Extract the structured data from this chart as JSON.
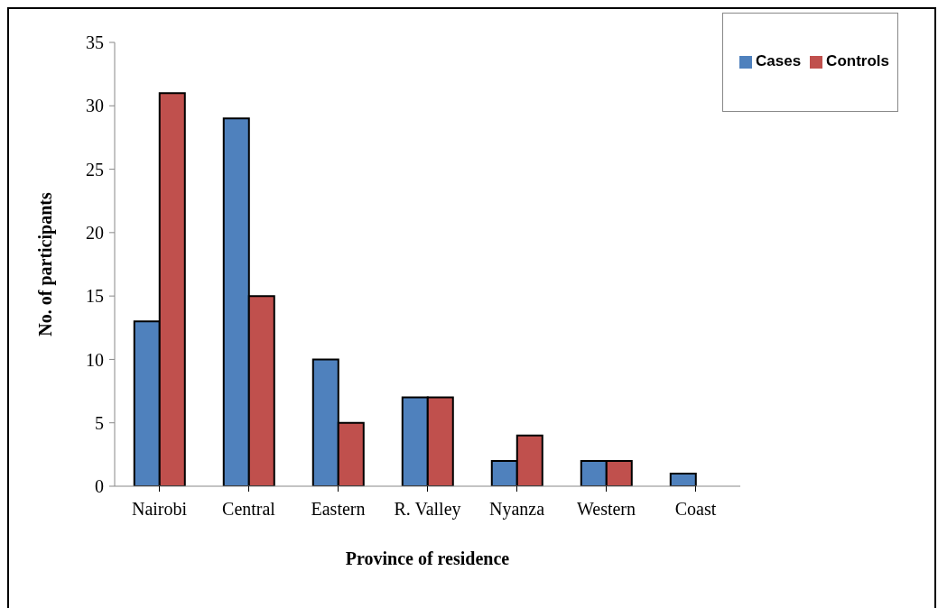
{
  "chart_data": {
    "type": "bar",
    "xlabel": "Province of residence",
    "ylabel": "No. of participants",
    "categories": [
      "Nairobi",
      "Central",
      "Eastern",
      "R. Valley",
      "Nyanza",
      "Western",
      "Coast"
    ],
    "series": [
      {
        "name": "Cases",
        "color": "#4f81bd",
        "values": [
          13,
          29,
          10,
          7,
          2,
          2,
          1
        ]
      },
      {
        "name": "Controls",
        "color": "#c0504d",
        "values": [
          31,
          15,
          5,
          7,
          4,
          2,
          0
        ]
      }
    ],
    "ylim": [
      0,
      35
    ],
    "yticks": [
      0,
      5,
      10,
      15,
      20,
      25,
      30,
      35
    ],
    "grid": false,
    "legend": "top right"
  }
}
